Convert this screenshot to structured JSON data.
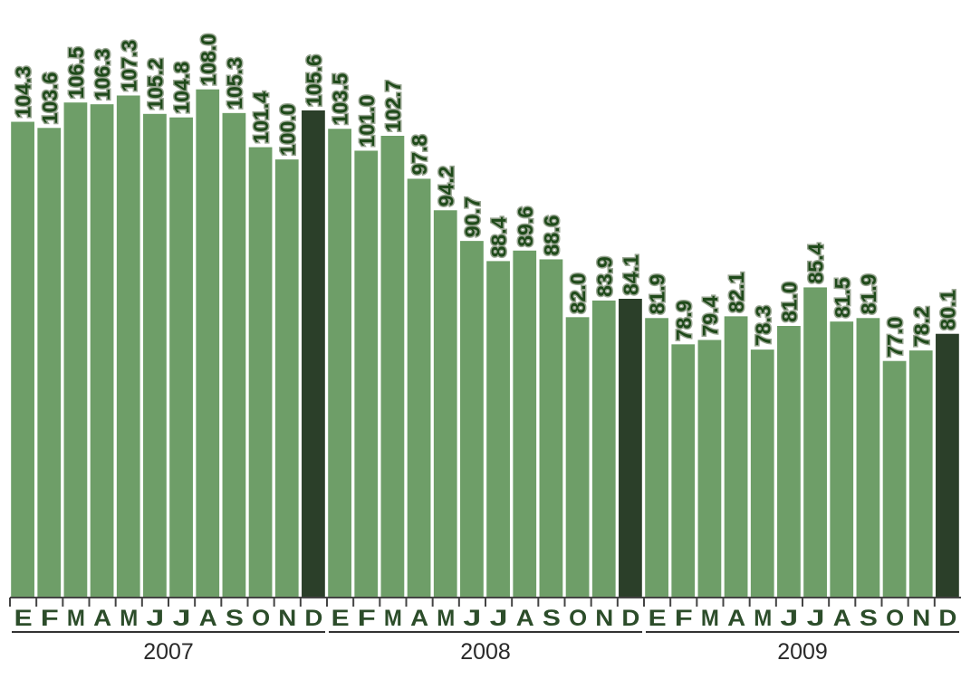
{
  "chart_data": {
    "type": "bar",
    "title": "",
    "xlabel": "",
    "ylabel": "",
    "ylim": [
      50,
      112
    ],
    "grid": false,
    "legend": "none",
    "categories": [
      "E",
      "F",
      "M",
      "A",
      "M",
      "J",
      "J",
      "A",
      "S",
      "O",
      "N",
      "D",
      "E",
      "F",
      "M",
      "A",
      "M",
      "J",
      "J",
      "A",
      "S",
      "O",
      "N",
      "D",
      "E",
      "F",
      "M",
      "A",
      "M",
      "J",
      "J",
      "A",
      "S",
      "O",
      "N",
      "D"
    ],
    "values": [
      104.3,
      103.6,
      106.5,
      106.3,
      107.3,
      105.2,
      104.8,
      108.0,
      105.3,
      101.4,
      100.0,
      105.6,
      103.5,
      101.0,
      102.7,
      97.8,
      94.2,
      90.7,
      88.4,
      89.6,
      88.6,
      82.0,
      83.9,
      84.1,
      81.9,
      78.9,
      79.4,
      82.1,
      78.3,
      81.0,
      85.4,
      81.5,
      81.9,
      77.0,
      78.2,
      80.1
    ],
    "value_labels": [
      "104.3",
      "103.6",
      "106.5",
      "106.3",
      "107.3",
      "105.2",
      "104.8",
      "108.0",
      "105.3",
      "101.4",
      "100.0",
      "105.6",
      "103.5",
      "101.0",
      "102.7",
      "97.8",
      "94.2",
      "90.7",
      "88.4",
      "89.6",
      "88.6",
      "82.0",
      "83.9",
      "84.1",
      "81.9",
      "78.9",
      "79.4",
      "82.1",
      "78.3",
      "81.0",
      "85.4",
      "81.5",
      "81.9",
      "77.0",
      "78.2",
      "80.1"
    ],
    "highlight_indices": [
      11,
      23,
      35
    ],
    "groups": [
      {
        "label": "2007",
        "start": 0,
        "end": 11
      },
      {
        "label": "2008",
        "start": 12,
        "end": 23
      },
      {
        "label": "2009",
        "start": 24,
        "end": 35
      }
    ],
    "colors": {
      "bar": "#6e9e68",
      "highlight": "#2b3f29",
      "axis": "#444444",
      "label": "#1f4a1a"
    }
  }
}
